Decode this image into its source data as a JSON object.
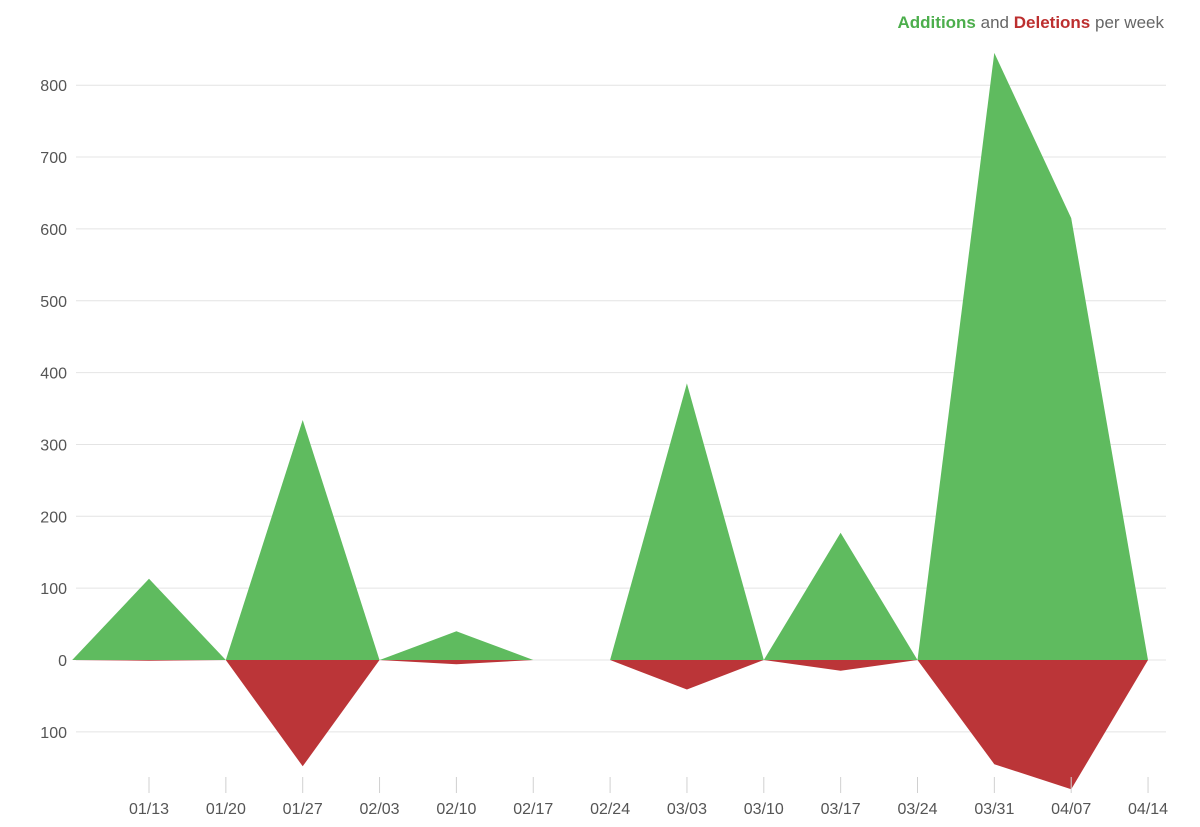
{
  "legend": {
    "additions_label": "Additions",
    "and_text": "and",
    "deletions_label": "Deletions",
    "suffix_text": "per week"
  },
  "colors": {
    "additions": "#5fbb5f",
    "deletions": "#bb3538",
    "grid": "#e4e4e4",
    "tick_text": "#555555"
  },
  "chart_data": {
    "type": "area",
    "title": "Additions and Deletions per week",
    "x_tick_labels": [
      "01/13",
      "01/20",
      "01/27",
      "02/03",
      "02/10",
      "02/17",
      "02/24",
      "03/03",
      "03/10",
      "03/17",
      "03/24",
      "03/31",
      "04/07",
      "04/14"
    ],
    "y_tick_labels": [
      "800",
      "700",
      "600",
      "500",
      "400",
      "300",
      "200",
      "100",
      "0",
      "100"
    ],
    "y_tick_values": [
      800,
      700,
      600,
      500,
      400,
      300,
      200,
      100,
      0,
      -100
    ],
    "ylim": [
      -180,
      850
    ],
    "grid": true,
    "legend_position": "top-right",
    "series": [
      {
        "name": "Additions",
        "segments": [
          [
            {
              "x": "01/06",
              "y": 0
            },
            {
              "x": "01/13",
              "y": 113
            },
            {
              "x": "01/20",
              "y": 0
            }
          ],
          [
            {
              "x": "01/20",
              "y": 0
            },
            {
              "x": "01/27",
              "y": 334
            },
            {
              "x": "02/03",
              "y": 0
            }
          ],
          [
            {
              "x": "02/03",
              "y": 0
            },
            {
              "x": "02/10",
              "y": 40
            },
            {
              "x": "02/17",
              "y": 0
            }
          ],
          [
            {
              "x": "02/24",
              "y": 0
            },
            {
              "x": "03/03",
              "y": 385
            },
            {
              "x": "03/10",
              "y": 0
            }
          ],
          [
            {
              "x": "03/10",
              "y": 0
            },
            {
              "x": "03/17",
              "y": 177
            },
            {
              "x": "03/24",
              "y": 0
            }
          ],
          [
            {
              "x": "03/24",
              "y": 0
            },
            {
              "x": "03/31",
              "y": 845
            },
            {
              "x": "04/07",
              "y": 615
            },
            {
              "x": "04/14",
              "y": 0
            }
          ]
        ]
      },
      {
        "name": "Deletions",
        "segments": [
          [
            {
              "x": "01/06",
              "y": 0
            },
            {
              "x": "01/13",
              "y": -1
            },
            {
              "x": "01/20",
              "y": 0
            }
          ],
          [
            {
              "x": "01/20",
              "y": 0
            },
            {
              "x": "01/27",
              "y": -148
            },
            {
              "x": "02/03",
              "y": 0
            }
          ],
          [
            {
              "x": "02/03",
              "y": 0
            },
            {
              "x": "02/10",
              "y": -6
            },
            {
              "x": "02/17",
              "y": 0
            }
          ],
          [
            {
              "x": "02/24",
              "y": 0
            },
            {
              "x": "03/03",
              "y": -41
            },
            {
              "x": "03/10",
              "y": 0
            }
          ],
          [
            {
              "x": "03/10",
              "y": 0
            },
            {
              "x": "03/17",
              "y": -15
            },
            {
              "x": "03/24",
              "y": 0
            }
          ],
          [
            {
              "x": "03/24",
              "y": 0
            },
            {
              "x": "03/31",
              "y": -145
            },
            {
              "x": "04/07",
              "y": -180
            },
            {
              "x": "04/14",
              "y": 0
            }
          ]
        ]
      }
    ]
  }
}
